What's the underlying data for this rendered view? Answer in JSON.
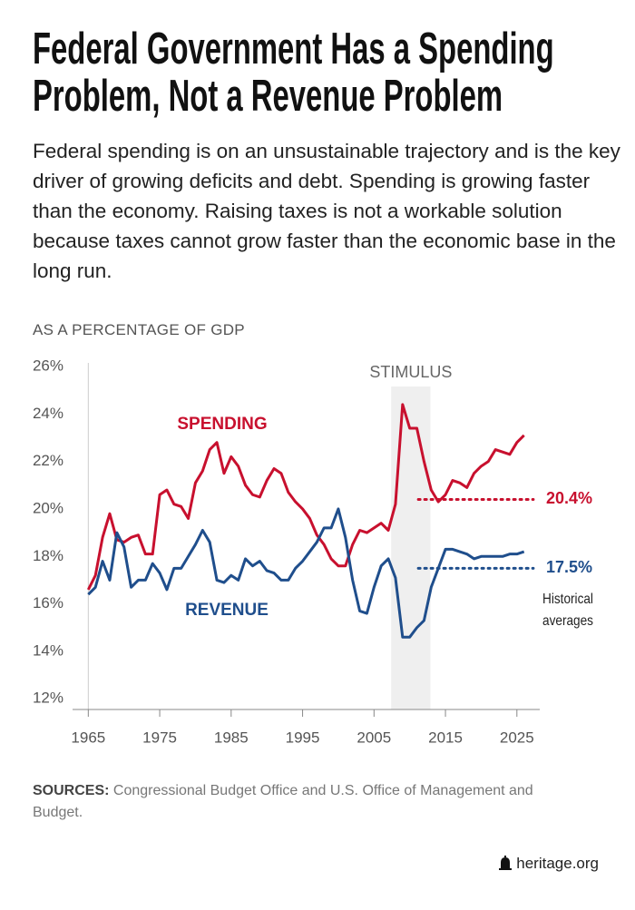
{
  "chart_data": {
    "type": "line",
    "title": "Federal Government Has a Spending Problem, Not a Revenue Problem",
    "subtitle": "Federal spending is on an unsustainable trajectory and is the key driver of growing deficits and debt. Spending is growing faster than the economy. Raising taxes is not a workable solution because taxes cannot grow faster than the economic base in the long run.",
    "y_axis_label": "AS A PERCENTAGE OF GDP",
    "x": [
      1965,
      1966,
      1967,
      1968,
      1969,
      1970,
      1971,
      1972,
      1973,
      1974,
      1975,
      1976,
      1977,
      1978,
      1979,
      1980,
      1981,
      1982,
      1983,
      1984,
      1985,
      1986,
      1987,
      1988,
      1989,
      1990,
      1991,
      1992,
      1993,
      1994,
      1995,
      1996,
      1997,
      1998,
      1999,
      2000,
      2001,
      2002,
      2003,
      2004,
      2005,
      2006,
      2007,
      2008,
      2009,
      2010,
      2011,
      2012,
      2013,
      2014,
      2015,
      2016,
      2017,
      2018,
      2019,
      2020,
      2021,
      2022,
      2023,
      2024,
      2025,
      2026
    ],
    "series": [
      {
        "name": "SPENDING",
        "color": "#c8102e",
        "values": [
          16.6,
          17.2,
          18.8,
          19.8,
          18.7,
          18.6,
          18.8,
          18.9,
          18.1,
          18.1,
          20.6,
          20.8,
          20.2,
          20.1,
          19.6,
          21.1,
          21.6,
          22.5,
          22.8,
          21.5,
          22.2,
          21.8,
          21.0,
          20.6,
          20.5,
          21.2,
          21.7,
          21.5,
          20.7,
          20.3,
          20.0,
          19.6,
          18.9,
          18.5,
          17.9,
          17.6,
          17.6,
          18.5,
          19.1,
          19.0,
          19.2,
          19.4,
          19.1,
          20.2,
          24.4,
          23.4,
          23.4,
          22.0,
          20.8,
          20.3,
          20.6,
          21.2,
          21.1,
          20.9,
          21.5,
          21.8,
          22.0,
          22.5,
          22.4,
          22.3,
          22.8,
          23.1
        ]
      },
      {
        "name": "REVENUE",
        "color": "#1f4e8c",
        "values": [
          16.4,
          16.7,
          17.8,
          17.0,
          19.0,
          18.4,
          16.7,
          17.0,
          17.0,
          17.7,
          17.3,
          16.6,
          17.5,
          17.5,
          18.0,
          18.5,
          19.1,
          18.6,
          17.0,
          16.9,
          17.2,
          17.0,
          17.9,
          17.6,
          17.8,
          17.4,
          17.3,
          17.0,
          17.0,
          17.5,
          17.8,
          18.2,
          18.6,
          19.2,
          19.2,
          20.0,
          18.8,
          17.0,
          15.7,
          15.6,
          16.7,
          17.6,
          17.9,
          17.1,
          14.6,
          14.6,
          15.0,
          15.3,
          16.7,
          17.5,
          18.3,
          18.3,
          18.2,
          18.1,
          17.9,
          18.0,
          18.0,
          18.0,
          18.0,
          18.1,
          18.1,
          18.2
        ]
      }
    ],
    "xlim": [
      1962.8,
      2028.2
    ],
    "xticks": [
      1965,
      1975,
      1985,
      1995,
      2005,
      2015,
      2025
    ],
    "ylim": [
      11.55,
      26
    ],
    "yticks": [
      {
        "value": 26,
        "label": "26%"
      },
      {
        "value": 24,
        "label": "24%"
      },
      {
        "value": 22,
        "label": "22%"
      },
      {
        "value": 20,
        "label": "20%"
      },
      {
        "value": 18,
        "label": "18%"
      },
      {
        "value": 16,
        "label": "16%"
      },
      {
        "value": 14,
        "label": "14%"
      },
      {
        "value": 12,
        "label": "12%"
      }
    ],
    "shaded_region": {
      "label": "STIMULUS",
      "x_range": [
        2007.4,
        2012.9
      ]
    },
    "reference_lines": [
      {
        "value": 20.4,
        "label": "20.4%",
        "color": "#c8102e",
        "x_range": [
          2011.2,
          2027.3
        ]
      },
      {
        "value": 17.5,
        "label": "17.5%",
        "color": "#1f4e8c",
        "x_range": [
          2011.2,
          2027.3
        ]
      }
    ],
    "reference_note": "Historical averages",
    "source_label": "SOURCES:",
    "source": "Congressional Budget Office and U.S. Office of Management and Budget.",
    "footer": "heritage.org"
  }
}
